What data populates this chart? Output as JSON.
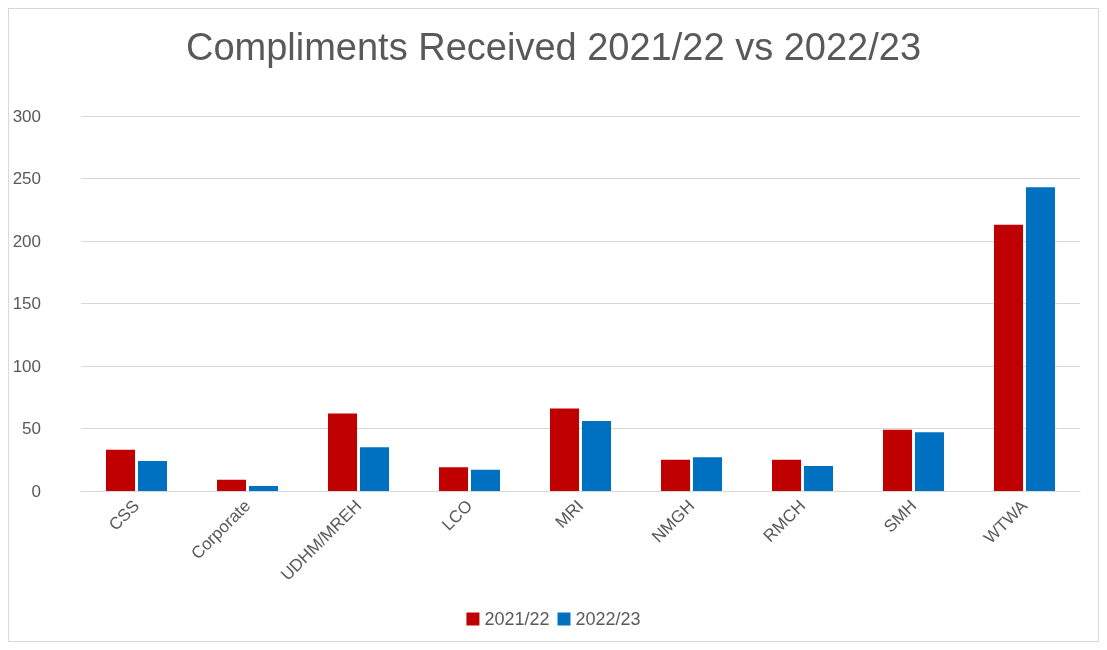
{
  "chart_data": {
    "type": "bar",
    "title": "Compliments Received 2021/22 vs 2022/23",
    "categories": [
      "CSS",
      "Corporate",
      "UDHM/MREH",
      "LCO",
      "MRI",
      "NMGH",
      "RMCH",
      "SMH",
      "WTWA"
    ],
    "series": [
      {
        "name": "2021/22",
        "color": "#c00000",
        "values": [
          33,
          9,
          62,
          19,
          66,
          25,
          25,
          49,
          213
        ]
      },
      {
        "name": "2022/23",
        "color": "#0070c0",
        "values": [
          24,
          4,
          35,
          17,
          56,
          27,
          20,
          47,
          243
        ]
      }
    ],
    "ylim": [
      0,
      300
    ],
    "yticks": [
      0,
      50,
      100,
      150,
      200,
      250,
      300
    ],
    "grid": "y",
    "legend": "bottom"
  }
}
